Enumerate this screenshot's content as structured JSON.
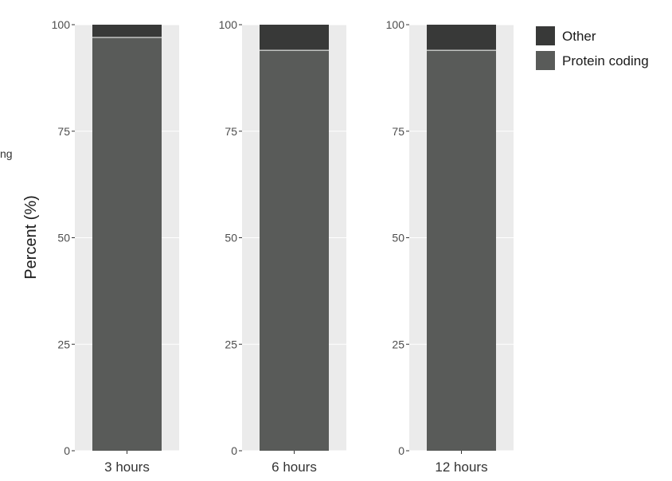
{
  "chart_data": {
    "type": "bar",
    "stacked": true,
    "faceted": true,
    "categories": [
      "3 hours",
      "6 hours",
      "12 hours"
    ],
    "series": [
      {
        "name": "Protein coding",
        "values": [
          97,
          94,
          94
        ],
        "color": "#595b59"
      },
      {
        "name": "Other",
        "values": [
          3,
          6,
          6
        ],
        "color": "#383938"
      }
    ],
    "ylabel": "Percent (%)",
    "ylim": [
      0,
      100
    ],
    "yticks": [
      "0",
      "25",
      "50",
      "75",
      "100"
    ],
    "legend": "right",
    "grid": true,
    "panel_background": "#ebebeb",
    "clipped_left_text": "ng"
  }
}
